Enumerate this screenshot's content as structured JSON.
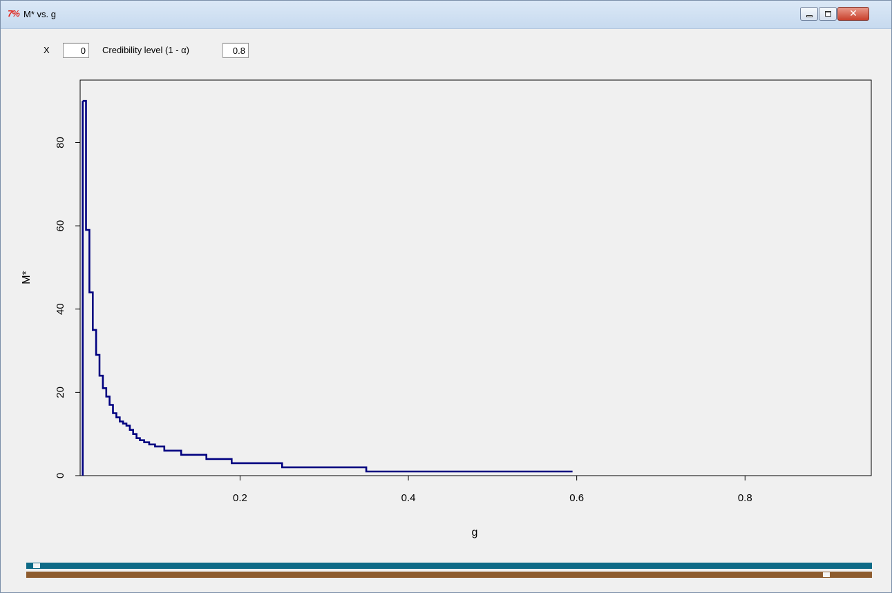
{
  "window": {
    "title": "M* vs. g",
    "app_icon": "tk-feather-icon",
    "buttons": [
      "minimize",
      "maximize",
      "close"
    ],
    "close_glyph": "✕"
  },
  "controls": {
    "x_label": "X",
    "x_value": "0",
    "cred_label": "Credibility level (1 - α)",
    "cred_value": "0.8"
  },
  "chart_data": {
    "type": "line",
    "style": "step",
    "xlabel": "g",
    "ylabel": "M*",
    "xlim": [
      0.01,
      0.95
    ],
    "ylim": [
      0,
      95
    ],
    "x_ticks": [
      0.2,
      0.4,
      0.6,
      0.8
    ],
    "x_tick_labels": [
      "0.2",
      "0.4",
      "0.6",
      "0.8"
    ],
    "y_ticks": [
      0,
      20,
      40,
      60,
      80
    ],
    "y_tick_labels": [
      "0",
      "20",
      "40",
      "60",
      "80"
    ],
    "grid": false,
    "series": [
      {
        "color": "#000080",
        "x": [
          0.013,
          0.017,
          0.021,
          0.025,
          0.029,
          0.033,
          0.037,
          0.041,
          0.045,
          0.049,
          0.053,
          0.057,
          0.061,
          0.065,
          0.069,
          0.073,
          0.077,
          0.081,
          0.086,
          0.092,
          0.099,
          0.11,
          0.13,
          0.16,
          0.19,
          0.25,
          0.35,
          0.595
        ],
        "y": [
          90,
          59,
          44,
          35,
          29,
          24,
          21,
          19,
          17,
          15,
          14,
          13,
          12.5,
          12,
          11,
          10,
          9,
          8.5,
          8,
          7.5,
          7,
          6,
          5,
          4,
          3,
          2,
          1,
          1
        ]
      }
    ]
  },
  "sliders": {
    "top_position": 0.008,
    "bottom_position": 0.95,
    "top_color": "#0e6a86",
    "bottom_color": "#8e5c2e"
  }
}
